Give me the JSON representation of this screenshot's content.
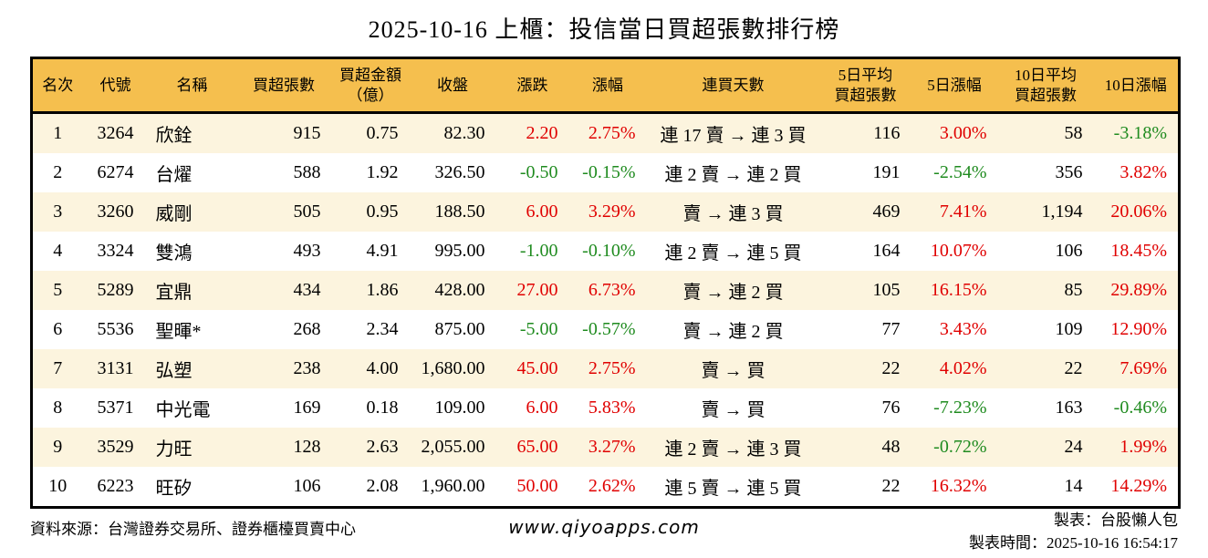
{
  "title": "2025-10-16 上櫃：投信當日買超張數排行榜",
  "colors": {
    "header_bg": "#f5bf4e",
    "stripe_bg": "#fcf4de",
    "up": "#e00000",
    "down": "#1f8b1f",
    "border": "#000000"
  },
  "chart_data": {
    "type": "table",
    "title": "2025-10-16 上櫃：投信當日買超張數排行榜",
    "columns": [
      "名次",
      "代號",
      "名稱",
      "買超張數",
      "買超金額\n（億）",
      "收盤",
      "漲跌",
      "漲幅",
      "連買天數",
      "5日平均\n買超張數",
      "5日漲幅",
      "10日平均\n買超張數",
      "10日漲幅"
    ],
    "rows": [
      [
        "1",
        "3264",
        "欣銓",
        "915",
        "0.75",
        "82.30",
        "2.20",
        "2.75%",
        "連 17 賣 → 連 3 買",
        "116",
        "3.00%",
        "58",
        "-3.18%"
      ],
      [
        "2",
        "6274",
        "台燿",
        "588",
        "1.92",
        "326.50",
        "-0.50",
        "-0.15%",
        "連 2 賣 → 連 2 買",
        "191",
        "-2.54%",
        "356",
        "3.82%"
      ],
      [
        "3",
        "3260",
        "威剛",
        "505",
        "0.95",
        "188.50",
        "6.00",
        "3.29%",
        "賣 → 連 3 買",
        "469",
        "7.41%",
        "1,194",
        "20.06%"
      ],
      [
        "4",
        "3324",
        "雙鴻",
        "493",
        "4.91",
        "995.00",
        "-1.00",
        "-0.10%",
        "連 2 賣 → 連 5 買",
        "164",
        "10.07%",
        "106",
        "18.45%"
      ],
      [
        "5",
        "5289",
        "宜鼎",
        "434",
        "1.86",
        "428.00",
        "27.00",
        "6.73%",
        "賣 → 連 2 買",
        "105",
        "16.15%",
        "85",
        "29.89%"
      ],
      [
        "6",
        "5536",
        "聖暉*",
        "268",
        "2.34",
        "875.00",
        "-5.00",
        "-0.57%",
        "賣 → 連 2 買",
        "77",
        "3.43%",
        "109",
        "12.90%"
      ],
      [
        "7",
        "3131",
        "弘塑",
        "238",
        "4.00",
        "1,680.00",
        "45.00",
        "2.75%",
        "賣 → 買",
        "22",
        "4.02%",
        "22",
        "7.69%"
      ],
      [
        "8",
        "5371",
        "中光電",
        "169",
        "0.18",
        "109.00",
        "6.00",
        "5.83%",
        "賣 → 買",
        "76",
        "-7.23%",
        "163",
        "-0.46%"
      ],
      [
        "9",
        "3529",
        "力旺",
        "128",
        "2.63",
        "2,055.00",
        "65.00",
        "3.27%",
        "連 2 賣 → 連 3 買",
        "48",
        "-0.72%",
        "24",
        "1.99%"
      ],
      [
        "10",
        "6223",
        "旺矽",
        "106",
        "2.08",
        "1,960.00",
        "50.00",
        "2.62%",
        "連 5 賣 → 連 5 買",
        "22",
        "16.32%",
        "14",
        "14.29%"
      ]
    ]
  },
  "footer": {
    "source": "資料來源：台灣證券交易所、證券櫃檯買賣中心",
    "website": "www.qiyoapps.com",
    "maker": "製表：台股懶人包",
    "made_at": "製表時間：2025-10-16 16:54:17"
  }
}
